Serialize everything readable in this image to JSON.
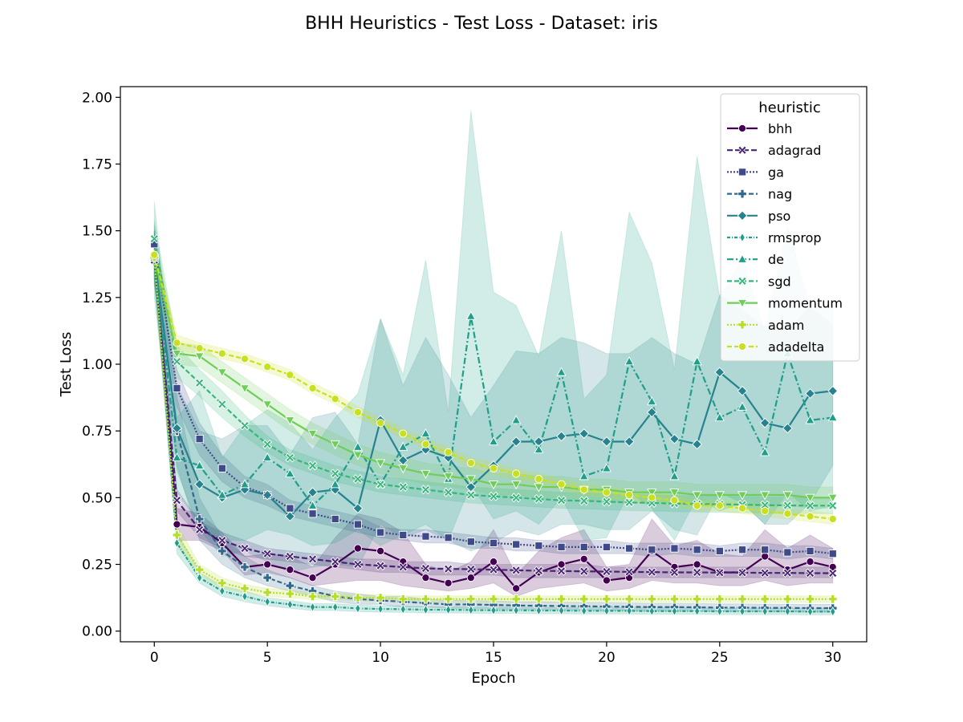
{
  "chart_data": {
    "type": "line",
    "title": "BHH Heuristics - Test Loss - Dataset: iris",
    "xlabel": "Epoch",
    "ylabel": "Test Loss",
    "xlim": [
      -1.5,
      31.5
    ],
    "ylim": [
      -0.04,
      2.04
    ],
    "x_ticks": [
      0,
      5,
      10,
      15,
      20,
      25,
      30
    ],
    "y_ticks": [
      0.0,
      0.25,
      0.5,
      0.75,
      1.0,
      1.25,
      1.5,
      1.75,
      2.0
    ],
    "y_tick_labels": [
      "0.00",
      "0.25",
      "0.50",
      "0.75",
      "1.00",
      "1.25",
      "1.50",
      "1.75",
      "2.00"
    ],
    "grid": false,
    "legend": {
      "title": "heuristic",
      "placement": "top-right"
    },
    "x": [
      0,
      1,
      2,
      3,
      4,
      5,
      6,
      7,
      8,
      9,
      10,
      11,
      12,
      13,
      14,
      15,
      16,
      17,
      18,
      19,
      20,
      21,
      22,
      23,
      24,
      25,
      26,
      27,
      28,
      29,
      30
    ],
    "series": [
      {
        "name": "bhh",
        "color": "#440154",
        "marker": "circle",
        "dash": "",
        "values": [
          1.41,
          0.4,
          0.39,
          0.33,
          0.24,
          0.25,
          0.23,
          0.2,
          0.25,
          0.31,
          0.3,
          0.26,
          0.2,
          0.18,
          0.2,
          0.26,
          0.16,
          0.22,
          0.25,
          0.27,
          0.19,
          0.2,
          0.3,
          0.24,
          0.25,
          0.22,
          0.22,
          0.28,
          0.23,
          0.26,
          0.24
        ],
        "lower": [
          1.33,
          0.34,
          0.34,
          0.3,
          0.21,
          0.22,
          0.2,
          0.17,
          0.18,
          0.19,
          0.19,
          0.17,
          0.16,
          0.15,
          0.16,
          0.18,
          0.13,
          0.16,
          0.17,
          0.18,
          0.15,
          0.16,
          0.19,
          0.18,
          0.18,
          0.17,
          0.17,
          0.19,
          0.17,
          0.18,
          0.18
        ],
        "upper": [
          1.5,
          0.46,
          0.44,
          0.37,
          0.28,
          0.29,
          0.28,
          0.24,
          0.35,
          0.44,
          0.42,
          0.37,
          0.25,
          0.22,
          0.26,
          0.38,
          0.21,
          0.3,
          0.35,
          0.38,
          0.24,
          0.25,
          0.42,
          0.32,
          0.34,
          0.29,
          0.28,
          0.38,
          0.31,
          0.36,
          0.31
        ]
      },
      {
        "name": "adagrad",
        "color": "#482475",
        "marker": "x",
        "dash": "7,3",
        "values": [
          1.39,
          0.49,
          0.38,
          0.34,
          0.31,
          0.29,
          0.28,
          0.27,
          0.26,
          0.25,
          0.245,
          0.24,
          0.235,
          0.233,
          0.232,
          0.23,
          0.228,
          0.226,
          0.225,
          0.224,
          0.223,
          0.222,
          0.221,
          0.22,
          0.22,
          0.219,
          0.219,
          0.218,
          0.218,
          0.217,
          0.217
        ],
        "lower": [
          1.33,
          0.45,
          0.35,
          0.31,
          0.28,
          0.27,
          0.26,
          0.25,
          0.24,
          0.23,
          0.22,
          0.22,
          0.21,
          0.21,
          0.21,
          0.21,
          0.2,
          0.2,
          0.2,
          0.2,
          0.2,
          0.2,
          0.2,
          0.2,
          0.2,
          0.2,
          0.2,
          0.2,
          0.2,
          0.2,
          0.2
        ],
        "upper": [
          1.45,
          0.53,
          0.41,
          0.37,
          0.34,
          0.31,
          0.3,
          0.29,
          0.28,
          0.27,
          0.27,
          0.26,
          0.26,
          0.26,
          0.25,
          0.25,
          0.25,
          0.25,
          0.25,
          0.25,
          0.24,
          0.24,
          0.24,
          0.24,
          0.24,
          0.24,
          0.24,
          0.24,
          0.24,
          0.24,
          0.24
        ]
      },
      {
        "name": "ga",
        "color": "#3e4a89",
        "marker": "square",
        "dash": "2,2",
        "values": [
          1.45,
          0.91,
          0.72,
          0.61,
          0.54,
          0.51,
          0.46,
          0.44,
          0.42,
          0.4,
          0.37,
          0.36,
          0.355,
          0.35,
          0.335,
          0.33,
          0.325,
          0.32,
          0.315,
          0.315,
          0.315,
          0.31,
          0.305,
          0.31,
          0.305,
          0.3,
          0.305,
          0.305,
          0.295,
          0.3,
          0.29
        ],
        "lower": [
          1.38,
          0.84,
          0.66,
          0.56,
          0.5,
          0.47,
          0.43,
          0.41,
          0.39,
          0.37,
          0.35,
          0.34,
          0.33,
          0.33,
          0.31,
          0.31,
          0.3,
          0.3,
          0.29,
          0.29,
          0.29,
          0.29,
          0.28,
          0.29,
          0.28,
          0.28,
          0.28,
          0.28,
          0.27,
          0.28,
          0.27
        ],
        "upper": [
          1.52,
          0.98,
          0.78,
          0.66,
          0.58,
          0.55,
          0.49,
          0.47,
          0.45,
          0.43,
          0.39,
          0.38,
          0.38,
          0.37,
          0.36,
          0.35,
          0.35,
          0.34,
          0.34,
          0.34,
          0.34,
          0.33,
          0.33,
          0.33,
          0.33,
          0.32,
          0.33,
          0.33,
          0.32,
          0.32,
          0.31
        ]
      },
      {
        "name": "nag",
        "color": "#31688e",
        "marker": "plus",
        "dash": "6,3",
        "values": [
          1.4,
          0.75,
          0.42,
          0.3,
          0.24,
          0.2,
          0.17,
          0.15,
          0.13,
          0.12,
          0.115,
          0.11,
          0.105,
          0.1,
          0.1,
          0.098,
          0.096,
          0.095,
          0.094,
          0.093,
          0.092,
          0.091,
          0.09,
          0.09,
          0.089,
          0.088,
          0.088,
          0.087,
          0.087,
          0.086,
          0.086
        ],
        "lower": [
          1.3,
          0.62,
          0.34,
          0.25,
          0.2,
          0.17,
          0.15,
          0.13,
          0.11,
          0.1,
          0.1,
          0.09,
          0.09,
          0.085,
          0.085,
          0.083,
          0.082,
          0.08,
          0.08,
          0.079,
          0.078,
          0.077,
          0.076,
          0.076,
          0.075,
          0.074,
          0.074,
          0.073,
          0.073,
          0.072,
          0.072
        ],
        "upper": [
          1.5,
          0.88,
          0.5,
          0.35,
          0.28,
          0.23,
          0.2,
          0.17,
          0.15,
          0.14,
          0.13,
          0.13,
          0.12,
          0.115,
          0.115,
          0.113,
          0.11,
          0.11,
          0.108,
          0.107,
          0.106,
          0.105,
          0.104,
          0.104,
          0.103,
          0.102,
          0.102,
          0.101,
          0.101,
          0.1,
          0.1
        ]
      },
      {
        "name": "pso",
        "color": "#26828e",
        "marker": "diamond",
        "dash": "",
        "values": [
          1.4,
          0.76,
          0.55,
          0.5,
          0.53,
          0.51,
          0.43,
          0.52,
          0.53,
          0.46,
          0.79,
          0.64,
          0.68,
          0.65,
          0.54,
          0.62,
          0.71,
          0.71,
          0.73,
          0.74,
          0.71,
          0.71,
          0.82,
          0.72,
          0.7,
          0.97,
          0.9,
          0.78,
          0.76,
          0.89,
          0.9
        ],
        "lower": [
          1.3,
          0.6,
          0.38,
          0.28,
          0.3,
          0.26,
          0.22,
          0.24,
          0.25,
          0.24,
          0.4,
          0.35,
          0.38,
          0.34,
          0.3,
          0.33,
          0.38,
          0.36,
          0.4,
          0.4,
          0.38,
          0.38,
          0.45,
          0.38,
          0.36,
          0.52,
          0.48,
          0.4,
          0.4,
          0.48,
          0.62
        ],
        "upper": [
          1.5,
          0.92,
          0.75,
          0.72,
          0.77,
          0.77,
          0.66,
          0.8,
          0.82,
          0.7,
          1.17,
          0.92,
          1.1,
          0.96,
          0.8,
          0.92,
          1.05,
          1.04,
          1.1,
          1.08,
          1.04,
          1.04,
          1.1,
          1.04,
          1.0,
          1.26,
          1.2,
          1.14,
          1.12,
          1.22,
          1.22
        ]
      },
      {
        "name": "rmsprop",
        "color": "#1f9e89",
        "marker": "thin-diamond",
        "dash": "4,2,1,2",
        "values": [
          1.4,
          0.33,
          0.2,
          0.15,
          0.13,
          0.11,
          0.1,
          0.09,
          0.09,
          0.085,
          0.083,
          0.082,
          0.08,
          0.08,
          0.079,
          0.078,
          0.078,
          0.077,
          0.077,
          0.076,
          0.076,
          0.076,
          0.075,
          0.075,
          0.075,
          0.074,
          0.074,
          0.074,
          0.074,
          0.073,
          0.073
        ],
        "lower": [
          1.32,
          0.29,
          0.18,
          0.13,
          0.11,
          0.095,
          0.085,
          0.077,
          0.077,
          0.073,
          0.071,
          0.07,
          0.068,
          0.068,
          0.067,
          0.066,
          0.066,
          0.065,
          0.065,
          0.064,
          0.064,
          0.064,
          0.063,
          0.063,
          0.063,
          0.062,
          0.062,
          0.062,
          0.062,
          0.061,
          0.061
        ],
        "upper": [
          1.48,
          0.37,
          0.22,
          0.17,
          0.15,
          0.125,
          0.115,
          0.103,
          0.103,
          0.097,
          0.095,
          0.094,
          0.092,
          0.092,
          0.091,
          0.09,
          0.09,
          0.089,
          0.089,
          0.088,
          0.088,
          0.088,
          0.087,
          0.087,
          0.087,
          0.086,
          0.086,
          0.086,
          0.086,
          0.085,
          0.085
        ]
      },
      {
        "name": "de",
        "color": "#1f9e89",
        "marker": "triangle-up",
        "dash": "8,3,2,3",
        "values": [
          1.4,
          0.65,
          0.62,
          0.51,
          0.55,
          0.65,
          0.59,
          0.47,
          0.55,
          0.69,
          0.55,
          0.69,
          0.74,
          0.57,
          1.18,
          0.71,
          0.79,
          0.68,
          0.97,
          0.58,
          0.61,
          1.01,
          0.86,
          0.58,
          1.01,
          0.8,
          0.84,
          0.67,
          1.04,
          0.79,
          0.8
        ],
        "lower": [
          1.25,
          0.52,
          0.4,
          0.34,
          0.34,
          0.38,
          0.36,
          0.32,
          0.33,
          0.38,
          0.32,
          0.36,
          0.4,
          0.34,
          0.55,
          0.42,
          0.45,
          0.4,
          0.5,
          0.34,
          0.35,
          0.52,
          0.46,
          0.34,
          0.5,
          0.45,
          0.48,
          0.4,
          0.52,
          0.45,
          0.47
        ],
        "upper": [
          1.61,
          0.8,
          0.9,
          0.65,
          0.77,
          0.83,
          0.78,
          0.68,
          0.8,
          0.89,
          1.17,
          0.96,
          1.39,
          0.82,
          1.95,
          1.27,
          1.22,
          1.03,
          1.5,
          0.87,
          0.96,
          1.57,
          1.38,
          0.98,
          1.78,
          1.25,
          1.4,
          1.12,
          1.52,
          1.21,
          1.15
        ]
      },
      {
        "name": "sgd",
        "color": "#35b779",
        "marker": "x-filled",
        "dash": "6,3",
        "values": [
          1.47,
          1.01,
          0.93,
          0.85,
          0.77,
          0.7,
          0.65,
          0.62,
          0.59,
          0.57,
          0.55,
          0.54,
          0.53,
          0.52,
          0.51,
          0.505,
          0.5,
          0.495,
          0.49,
          0.488,
          0.485,
          0.482,
          0.48,
          0.478,
          0.476,
          0.475,
          0.474,
          0.472,
          0.471,
          0.47,
          0.47
        ],
        "lower": [
          1.4,
          0.95,
          0.88,
          0.8,
          0.73,
          0.67,
          0.62,
          0.59,
          0.56,
          0.54,
          0.52,
          0.51,
          0.5,
          0.49,
          0.48,
          0.475,
          0.47,
          0.465,
          0.46,
          0.458,
          0.455,
          0.452,
          0.45,
          0.448,
          0.446,
          0.445,
          0.444,
          0.442,
          0.441,
          0.44,
          0.44
        ],
        "upper": [
          1.54,
          1.07,
          0.98,
          0.9,
          0.81,
          0.73,
          0.68,
          0.65,
          0.62,
          0.6,
          0.58,
          0.57,
          0.56,
          0.55,
          0.54,
          0.535,
          0.53,
          0.525,
          0.52,
          0.518,
          0.515,
          0.512,
          0.51,
          0.508,
          0.506,
          0.505,
          0.504,
          0.502,
          0.501,
          0.5,
          0.5
        ]
      },
      {
        "name": "momentum",
        "color": "#6ece58",
        "marker": "triangle-down",
        "dash": "",
        "values": [
          1.4,
          1.04,
          1.03,
          0.97,
          0.91,
          0.85,
          0.79,
          0.74,
          0.7,
          0.66,
          0.63,
          0.61,
          0.59,
          0.58,
          0.57,
          0.55,
          0.55,
          0.54,
          0.54,
          0.53,
          0.53,
          0.52,
          0.52,
          0.52,
          0.51,
          0.51,
          0.51,
          0.51,
          0.51,
          0.5,
          0.5
        ],
        "lower": [
          1.33,
          1.0,
          0.99,
          0.93,
          0.87,
          0.81,
          0.75,
          0.7,
          0.66,
          0.62,
          0.59,
          0.57,
          0.55,
          0.54,
          0.53,
          0.51,
          0.51,
          0.5,
          0.5,
          0.49,
          0.49,
          0.48,
          0.48,
          0.48,
          0.47,
          0.47,
          0.47,
          0.47,
          0.47,
          0.46,
          0.46
        ],
        "upper": [
          1.47,
          1.08,
          1.07,
          1.01,
          0.95,
          0.89,
          0.83,
          0.78,
          0.74,
          0.7,
          0.67,
          0.65,
          0.63,
          0.62,
          0.61,
          0.59,
          0.59,
          0.58,
          0.58,
          0.57,
          0.57,
          0.56,
          0.56,
          0.56,
          0.55,
          0.55,
          0.55,
          0.55,
          0.55,
          0.54,
          0.54
        ]
      },
      {
        "name": "adam",
        "color": "#b5de2b",
        "marker": "plus-filled",
        "dash": "2,2",
        "values": [
          1.4,
          0.36,
          0.23,
          0.18,
          0.16,
          0.145,
          0.14,
          0.13,
          0.13,
          0.125,
          0.125,
          0.12,
          0.12,
          0.12,
          0.12,
          0.12,
          0.12,
          0.12,
          0.12,
          0.12,
          0.12,
          0.12,
          0.12,
          0.12,
          0.12,
          0.12,
          0.12,
          0.12,
          0.12,
          0.12,
          0.12
        ],
        "lower": [
          1.34,
          0.32,
          0.21,
          0.16,
          0.145,
          0.13,
          0.125,
          0.118,
          0.118,
          0.113,
          0.113,
          0.108,
          0.108,
          0.108,
          0.108,
          0.108,
          0.108,
          0.108,
          0.108,
          0.108,
          0.108,
          0.108,
          0.108,
          0.108,
          0.108,
          0.108,
          0.108,
          0.108,
          0.108,
          0.108,
          0.108
        ],
        "upper": [
          1.46,
          0.4,
          0.25,
          0.2,
          0.175,
          0.16,
          0.155,
          0.142,
          0.142,
          0.137,
          0.137,
          0.132,
          0.132,
          0.132,
          0.132,
          0.132,
          0.132,
          0.132,
          0.132,
          0.132,
          0.132,
          0.132,
          0.132,
          0.132,
          0.132,
          0.132,
          0.132,
          0.132,
          0.132,
          0.132,
          0.132
        ]
      },
      {
        "name": "adadelta",
        "color": "#c8e020",
        "marker": "circle",
        "dash": "6,3",
        "values": [
          1.41,
          1.08,
          1.06,
          1.04,
          1.02,
          0.99,
          0.96,
          0.91,
          0.87,
          0.82,
          0.78,
          0.74,
          0.7,
          0.67,
          0.63,
          0.61,
          0.59,
          0.57,
          0.55,
          0.53,
          0.52,
          0.51,
          0.5,
          0.49,
          0.47,
          0.47,
          0.46,
          0.45,
          0.44,
          0.43,
          0.42
        ],
        "lower": [
          1.36,
          1.05,
          1.04,
          1.02,
          1.0,
          0.97,
          0.94,
          0.89,
          0.85,
          0.8,
          0.76,
          0.72,
          0.68,
          0.65,
          0.61,
          0.59,
          0.57,
          0.55,
          0.53,
          0.51,
          0.5,
          0.49,
          0.48,
          0.47,
          0.45,
          0.45,
          0.44,
          0.43,
          0.42,
          0.41,
          0.4
        ],
        "upper": [
          1.46,
          1.11,
          1.08,
          1.06,
          1.04,
          1.01,
          0.98,
          0.93,
          0.89,
          0.84,
          0.8,
          0.76,
          0.72,
          0.69,
          0.65,
          0.63,
          0.61,
          0.59,
          0.57,
          0.55,
          0.54,
          0.53,
          0.52,
          0.51,
          0.49,
          0.49,
          0.48,
          0.47,
          0.46,
          0.45,
          0.44
        ]
      }
    ]
  }
}
